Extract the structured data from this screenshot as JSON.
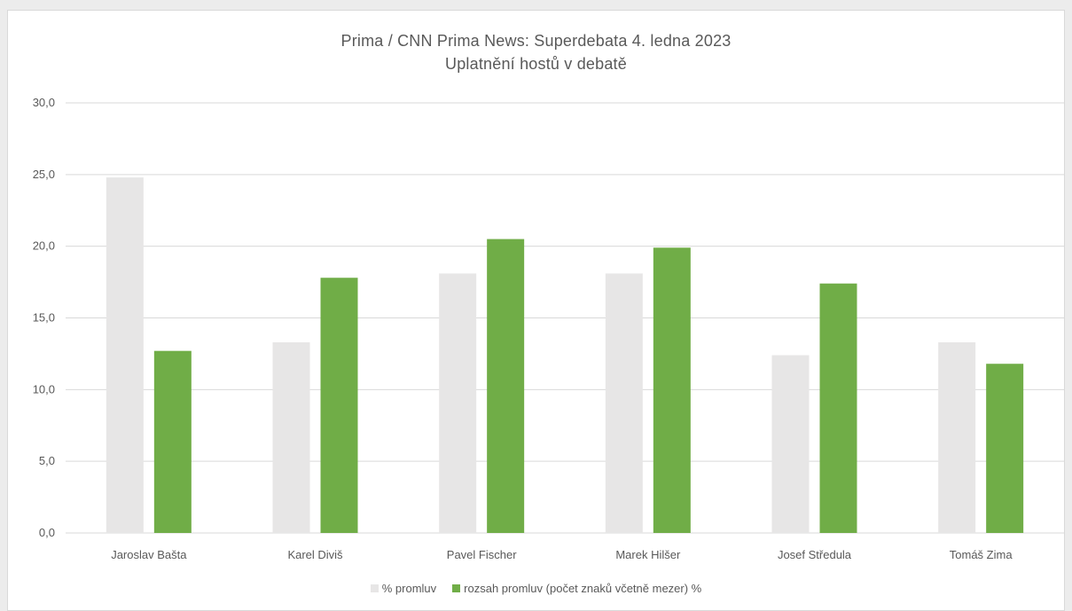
{
  "chart_data": {
    "type": "bar",
    "title": "Prima / CNN Prima News: Superdebata  4. ledna 2023",
    "subtitle": "Uplatnění hostů v debatě",
    "categories": [
      "Jaroslav Bašta",
      "Karel Diviš",
      "Pavel Fischer",
      "Marek Hilšer",
      "Josef Středula",
      "Tomáš Zima"
    ],
    "series": [
      {
        "name": "% promluv",
        "color": "#e7e6e6",
        "values": [
          24.8,
          13.3,
          18.1,
          18.1,
          12.4,
          13.3
        ]
      },
      {
        "name": "rozsah promluv (počet znaků včetně mezer) %",
        "color": "#70ad47",
        "values": [
          12.7,
          17.8,
          20.5,
          19.9,
          17.4,
          11.8
        ]
      }
    ],
    "ylim": [
      0,
      30
    ],
    "yticks": [
      "0,0",
      "5,0",
      "10,0",
      "15,0",
      "20,0",
      "25,0",
      "30,0"
    ],
    "grid": true,
    "legend_position": "bottom"
  }
}
